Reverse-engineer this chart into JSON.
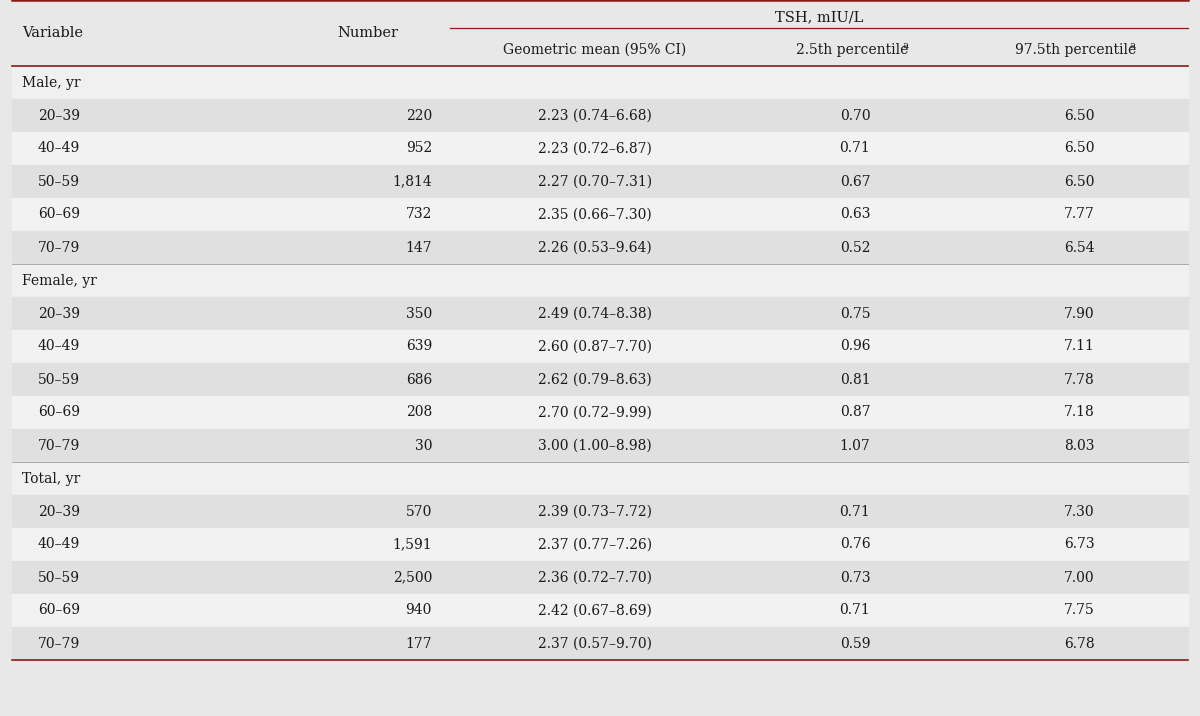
{
  "col_headers_row1": [
    "Variable",
    "Number",
    "TSH, mIU/L",
    "",
    ""
  ],
  "col_headers_row2": [
    "",
    "",
    "Geometric mean (95% CI)",
    "2.5th percentile",
    "97.5th percentile"
  ],
  "sections": [
    {
      "name": "Male, yr",
      "rows": [
        {
          "variable": "20–39",
          "number": "220",
          "geom": "2.23 (0.74–6.68)",
          "p25": "0.70",
          "p975": "6.50"
        },
        {
          "variable": "40–49",
          "number": "952",
          "geom": "2.23 (0.72–6.87)",
          "p25": "0.71",
          "p975": "6.50"
        },
        {
          "variable": "50–59",
          "number": "1,814",
          "geom": "2.27 (0.70–7.31)",
          "p25": "0.67",
          "p975": "6.50"
        },
        {
          "variable": "60–69",
          "number": "732",
          "geom": "2.35 (0.66–7.30)",
          "p25": "0.63",
          "p975": "7.77"
        },
        {
          "variable": "70–79",
          "number": "147",
          "geom": "2.26 (0.53–9.64)",
          "p25": "0.52",
          "p975": "6.54"
        }
      ]
    },
    {
      "name": "Female, yr",
      "rows": [
        {
          "variable": "20–39",
          "number": "350",
          "geom": "2.49 (0.74–8.38)",
          "p25": "0.75",
          "p975": "7.90"
        },
        {
          "variable": "40–49",
          "number": "639",
          "geom": "2.60 (0.87–7.70)",
          "p25": "0.96",
          "p975": "7.11"
        },
        {
          "variable": "50–59",
          "number": "686",
          "geom": "2.62 (0.79–8.63)",
          "p25": "0.81",
          "p975": "7.78"
        },
        {
          "variable": "60–69",
          "number": "208",
          "geom": "2.70 (0.72–9.99)",
          "p25": "0.87",
          "p975": "7.18"
        },
        {
          "variable": "70–79",
          "number": "30",
          "geom": "3.00 (1.00–8.98)",
          "p25": "1.07",
          "p975": "8.03"
        }
      ]
    },
    {
      "name": "Total, yr",
      "rows": [
        {
          "variable": "20–39",
          "number": "570",
          "geom": "2.39 (0.73–7.72)",
          "p25": "0.71",
          "p975": "7.30"
        },
        {
          "variable": "40–49",
          "number": "1,591",
          "geom": "2.37 (0.77–7.26)",
          "p25": "0.76",
          "p975": "6.73"
        },
        {
          "variable": "50–59",
          "number": "2,500",
          "geom": "2.36 (0.72–7.70)",
          "p25": "0.73",
          "p975": "7.00"
        },
        {
          "variable": "60–69",
          "number": "940",
          "geom": "2.42 (0.67–8.69)",
          "p25": "0.71",
          "p975": "7.75"
        },
        {
          "variable": "70–79",
          "number": "177",
          "geom": "2.37 (0.57–9.70)",
          "p25": "0.59",
          "p975": "6.78"
        }
      ]
    }
  ],
  "bg_color": "#e8e8e8",
  "stripe_color": "#e0e0e0",
  "white_color": "#f2f2f2",
  "section_header_color": "#f0f0f0",
  "header_bg_color": "#e8e8e8",
  "dark_red": "#8b1a1a",
  "sep_line_color": "#aaaaaa",
  "text_color": "#1a1a1a",
  "font_size_header": 10.5,
  "font_size_data": 10.0,
  "font_family": "serif"
}
